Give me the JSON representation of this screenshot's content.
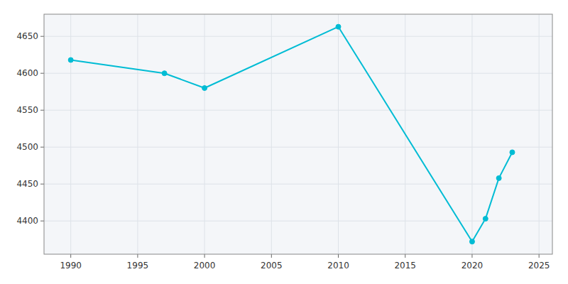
{
  "chart_data": {
    "type": "line",
    "x": [
      1990,
      1997,
      2000,
      2010,
      2020,
      2021,
      2022,
      2023
    ],
    "values": [
      4618,
      4600,
      4580,
      4663,
      4372,
      4403,
      4458,
      4493
    ],
    "color": "#00BCD4",
    "marker": "circle",
    "xlim": [
      1988,
      2026
    ],
    "ylim": [
      4355,
      4680
    ],
    "xticks": [
      1990,
      1995,
      2000,
      2005,
      2010,
      2015,
      2020,
      2025
    ],
    "yticks": [
      4400,
      4450,
      4500,
      4550,
      4600,
      4650
    ],
    "grid": true
  }
}
